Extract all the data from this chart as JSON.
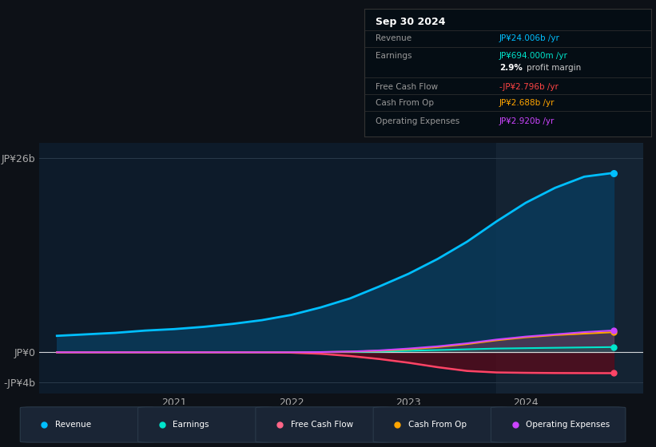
{
  "bg_color": "#0d1117",
  "plot_bg_color": "#0d1b2a",
  "highlight_bg": "#1a2a3a",
  "title": "Sep 30 2024",
  "x_years": [
    2020.0,
    2020.25,
    2020.5,
    2020.75,
    2021.0,
    2021.25,
    2021.5,
    2021.75,
    2022.0,
    2022.25,
    2022.5,
    2022.75,
    2023.0,
    2023.25,
    2023.5,
    2023.75,
    2024.0,
    2024.25,
    2024.5,
    2024.75
  ],
  "revenue": [
    2200,
    2400,
    2600,
    2900,
    3100,
    3400,
    3800,
    4300,
    5000,
    6000,
    7200,
    8800,
    10500,
    12500,
    14800,
    17500,
    20000,
    22000,
    23500,
    24006
  ],
  "earnings": [
    0,
    0,
    0,
    0,
    0,
    0,
    0,
    0,
    0,
    20,
    50,
    100,
    200,
    300,
    400,
    500,
    550,
    600,
    650,
    694
  ],
  "fcf": [
    0,
    0,
    0,
    0,
    0,
    0,
    0,
    0,
    -50,
    -200,
    -500,
    -900,
    -1400,
    -2000,
    -2500,
    -2700,
    -2750,
    -2780,
    -2790,
    -2796
  ],
  "cash_from_op": [
    0,
    0,
    0,
    0,
    0,
    0,
    0,
    0,
    0,
    30,
    80,
    200,
    400,
    700,
    1100,
    1600,
    2000,
    2300,
    2500,
    2688
  ],
  "op_expenses": [
    0,
    0,
    0,
    0,
    0,
    0,
    0,
    0,
    0,
    30,
    100,
    250,
    500,
    800,
    1200,
    1700,
    2100,
    2400,
    2700,
    2920
  ],
  "yticks": [
    -4000,
    0,
    26000
  ],
  "ytick_labels": [
    "-JP¥4b",
    "JP¥0",
    "JP¥26b"
  ],
  "xtick_years": [
    2021,
    2022,
    2023,
    2024
  ],
  "highlight_start": 2023.75,
  "revenue_color": "#00bfff",
  "earnings_color": "#00e5cc",
  "fcf_color": "#ff4466",
  "cash_from_op_color": "#ffa500",
  "op_expenses_color": "#cc44ff",
  "revenue_fill_color": "#0a3a5a",
  "fcf_fill_color": "#5a0a1a",
  "info_title": "Sep 30 2024",
  "info_rows": [
    {
      "label": "Revenue",
      "value": "JP¥24.006b /yr",
      "color": "#00bfff"
    },
    {
      "label": "Earnings",
      "value": "JP¥694.000m /yr",
      "color": "#00e5cc"
    },
    {
      "label": "",
      "value": "2.9% profit margin",
      "color": "#ffffff"
    },
    {
      "label": "Free Cash Flow",
      "value": "-JP¥2.796b /yr",
      "color": "#ff4444"
    },
    {
      "label": "Cash From Op",
      "value": "JP¥2.688b /yr",
      "color": "#ffa500"
    },
    {
      "label": "Operating Expenses",
      "value": "JP¥2.920b /yr",
      "color": "#cc44ff"
    }
  ],
  "legend_items": [
    {
      "label": "Revenue",
      "color": "#00bfff"
    },
    {
      "label": "Earnings",
      "color": "#00e5cc"
    },
    {
      "label": "Free Cash Flow",
      "color": "#ff6688"
    },
    {
      "label": "Cash From Op",
      "color": "#ffa500"
    },
    {
      "label": "Operating Expenses",
      "color": "#cc44ff"
    }
  ]
}
